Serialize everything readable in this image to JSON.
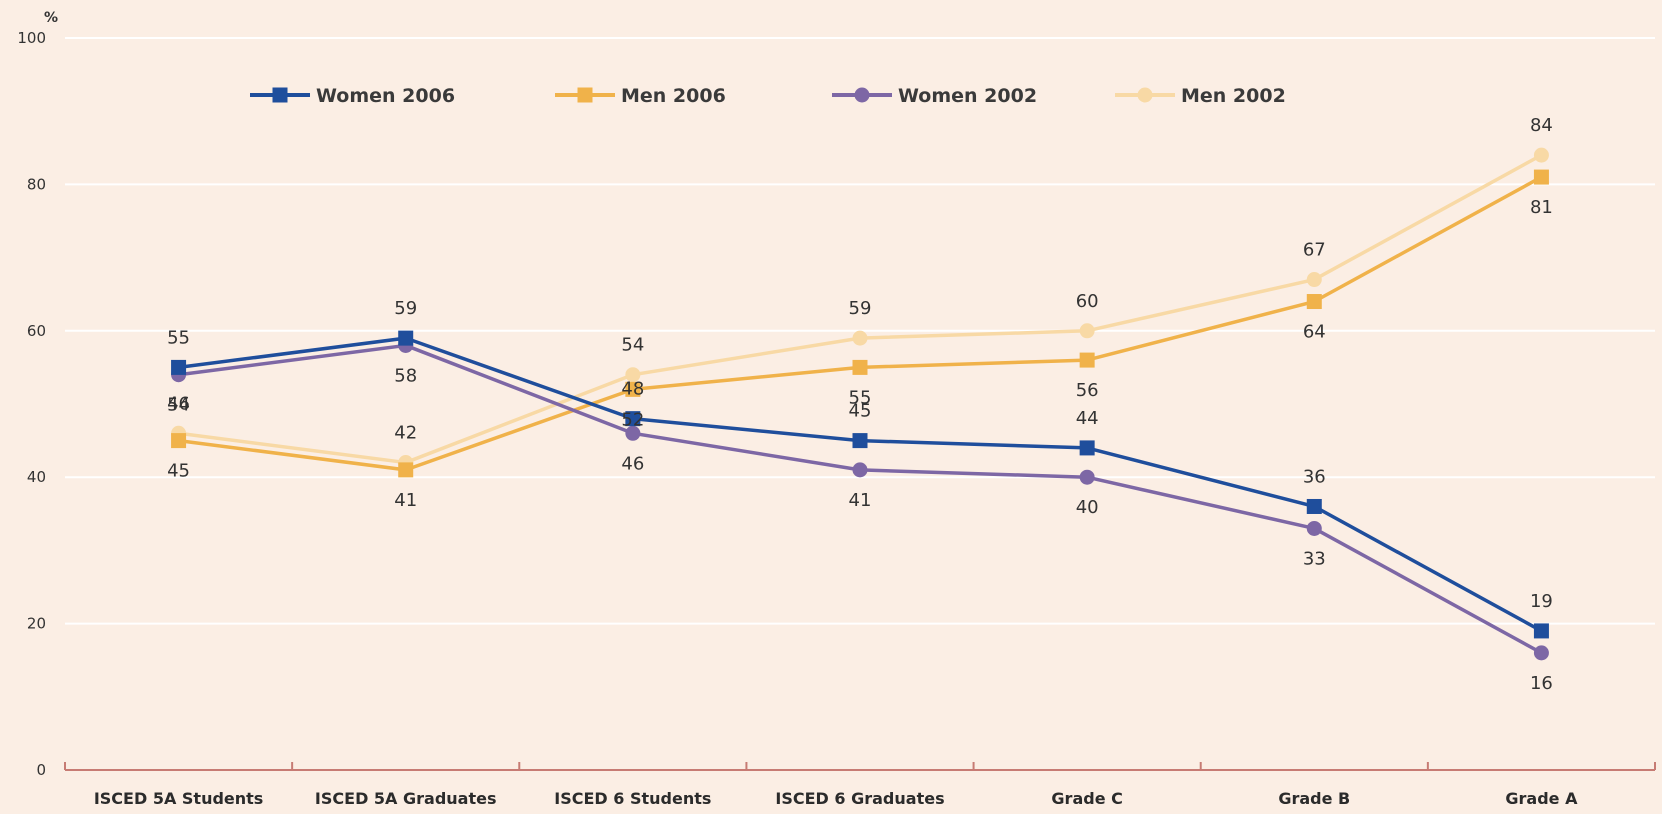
{
  "chart_data": {
    "type": "line",
    "title": "",
    "xlabel": "",
    "ylabel": "",
    "y_unit": "%",
    "ylim": [
      0,
      100
    ],
    "yticks": [
      0,
      20,
      40,
      60,
      80,
      100
    ],
    "grid": true,
    "legend_position": "top",
    "categories": [
      "ISCED 5A Students",
      "ISCED 5A Graduates",
      "ISCED 6 Students",
      "ISCED 6 Graduates",
      "Grade C",
      "Grade B",
      "Grade A"
    ],
    "series": [
      {
        "name": "Women 2006",
        "marker": "square",
        "color": "#1f4e9c",
        "values": [
          55,
          59,
          48,
          45,
          44,
          36,
          19
        ]
      },
      {
        "name": "Men 2006",
        "marker": "square",
        "color": "#f0b24a",
        "values": [
          45,
          41,
          52,
          55,
          56,
          64,
          81
        ]
      },
      {
        "name": "Women 2002",
        "marker": "circle",
        "color": "#7d67a5",
        "values": [
          54,
          58,
          46,
          41,
          40,
          33,
          16
        ]
      },
      {
        "name": "Men 2002",
        "marker": "circle",
        "color": "#f8d9a5",
        "values": [
          46,
          42,
          54,
          59,
          60,
          67,
          84
        ]
      }
    ]
  }
}
